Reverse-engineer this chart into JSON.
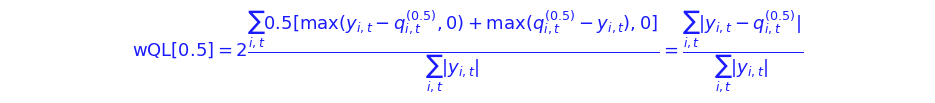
{
  "equation": "wQL[0.5] = 2\\frac{\\sum_{i,t} 0.5[\\max(y_{i,t} - q_{i,t}^{(0.5)}, 0) + \\max(q_{i,t}^{(0.5)} - y_{i,t}), 0]}{\\sum_{i,t} |y_{i,t}|} = \\frac{\\sum_{i,t} |y_{i,t} - q_{i,t}^{(0.5)}|}{\\sum_{i,t} |y_{i,t}|}",
  "background_color": "#ffffff",
  "text_color": "#1a1aff",
  "fontsize": 13,
  "fig_width": 9.35,
  "fig_height": 1.03,
  "dpi": 100
}
